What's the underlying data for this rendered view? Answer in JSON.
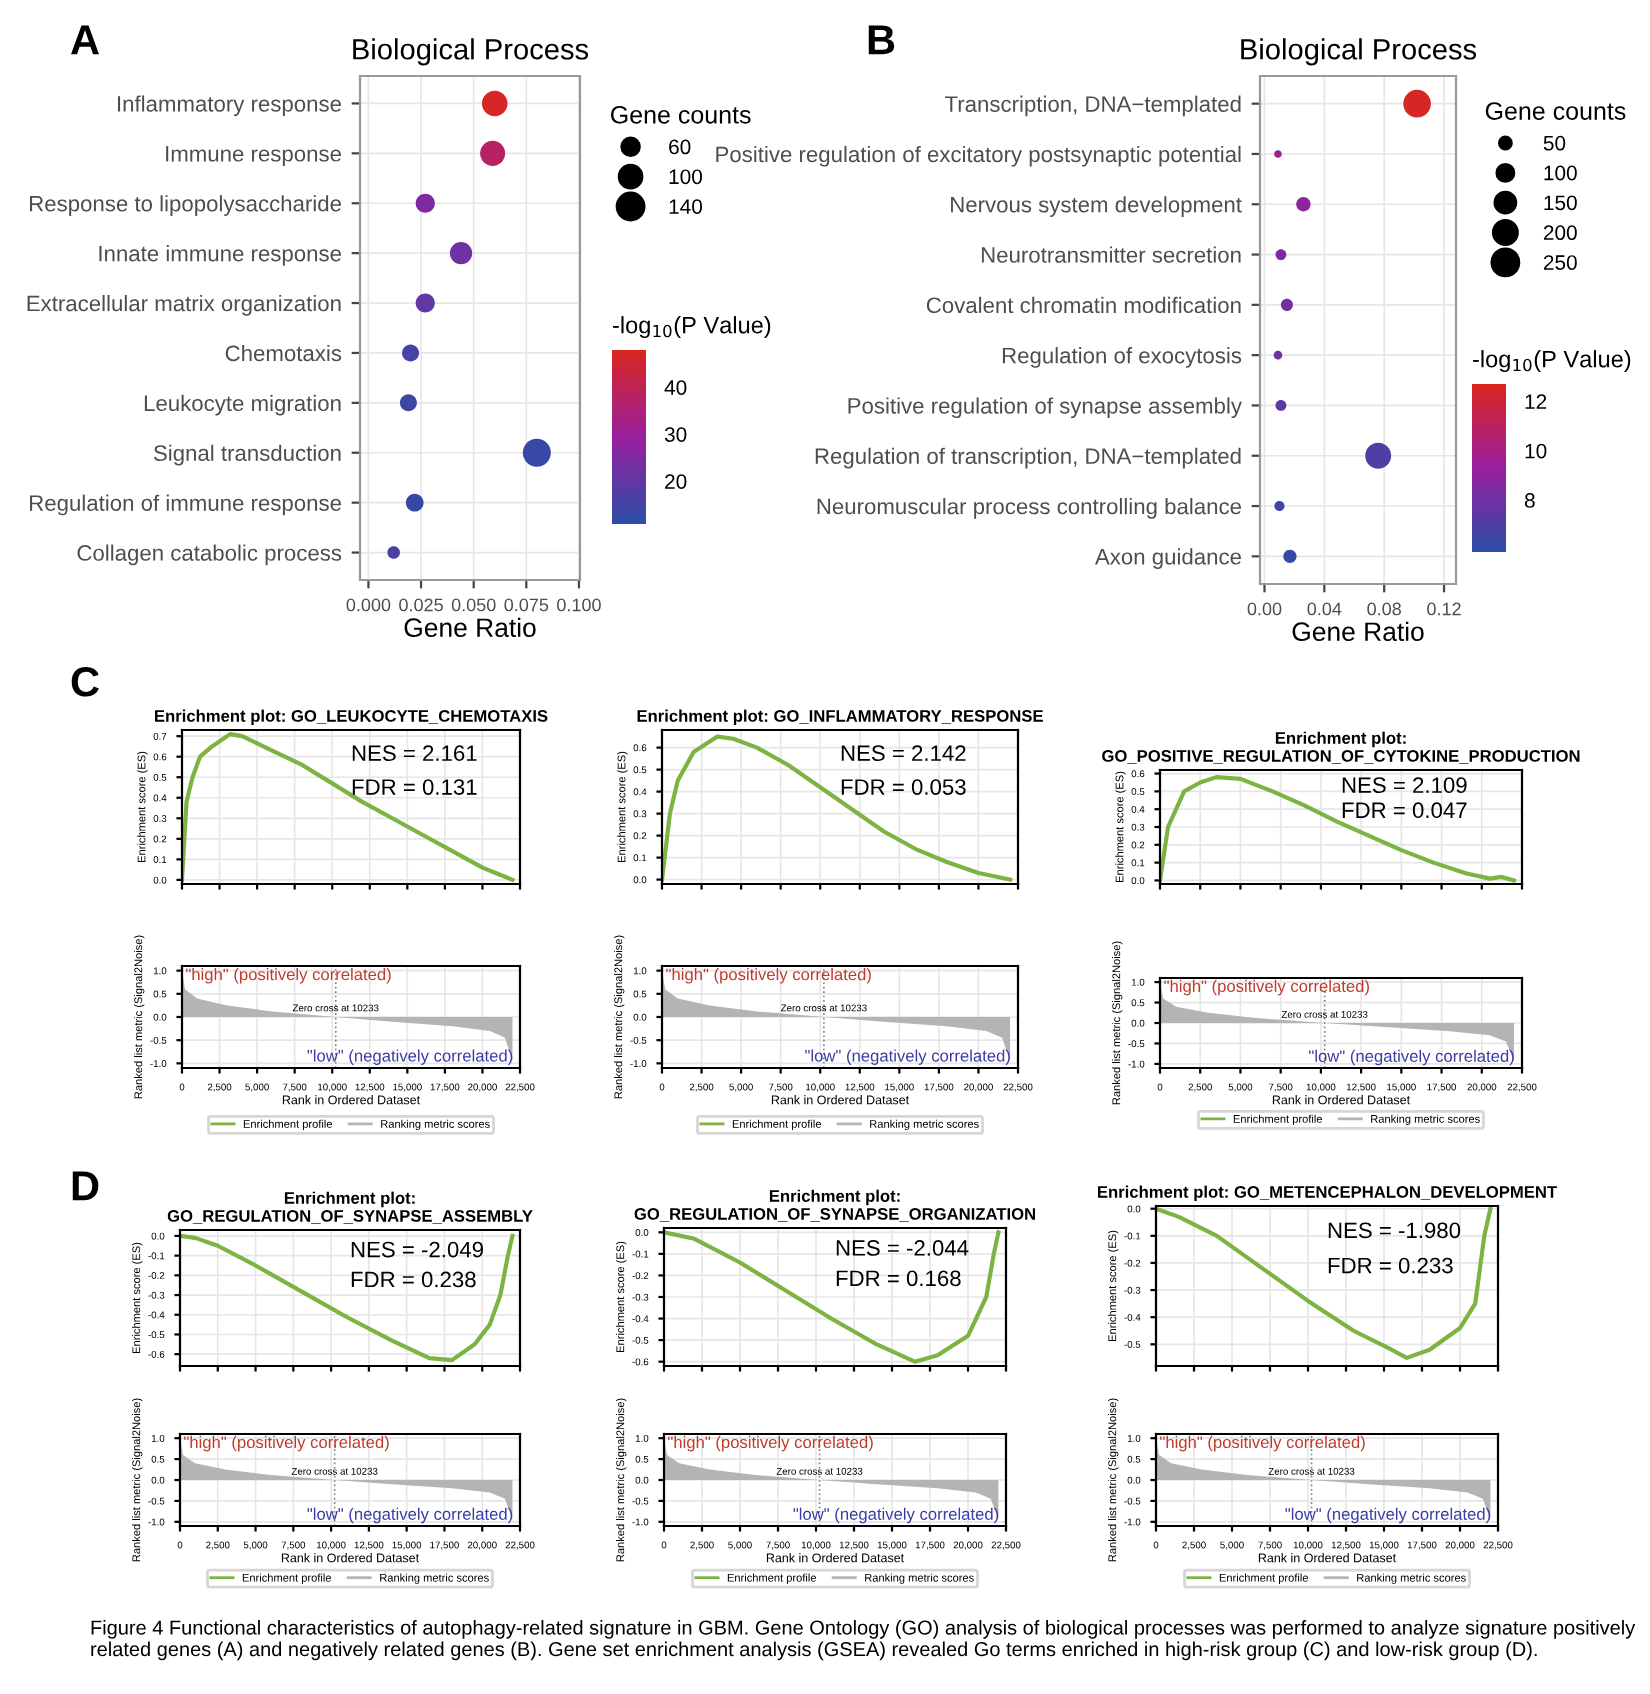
{
  "chart_data": [
    {
      "type": "bubble",
      "orientation": "horizontal",
      "title": "Biological Process",
      "xlabel": "Gene Ratio",
      "legend_title": "Gene counts",
      "clabel": "-log$_{10}$(P Value)",
      "annotations": [
        "A",
        "Figure 4 Functional characteristics of autophagy-related signature in GBM. Gene Ontology (GO) analysis of biological processes was performed to analyze signature positively related genes (A) and negatively related genes (B). Gene set enrichment analysis (GSEA) revealed Go terms enriched in high-risk group (C) and low-risk group (D)."
      ],
      "categories": [
        "Inflammatory response",
        "Immune response",
        "Response to lipopolysaccharide",
        "Innate immune response",
        "Extracellular matrix organization",
        "Chemotaxis",
        "Leukocyte migration",
        "Signal transduction",
        "Regulation of immune response",
        "Collagen catabolic process"
      ],
      "values": [
        0.06,
        0.059,
        0.027,
        0.044,
        0.027,
        0.02,
        0.019,
        0.08,
        0.022,
        0.012
      ],
      "sizes": [
        125,
        120,
        70,
        95,
        70,
        55,
        55,
        150,
        60,
        30
      ],
      "size_legend": [
        60,
        100,
        140
      ],
      "cvalues": [
        47,
        38,
        25,
        22,
        20,
        15,
        14,
        13,
        13,
        16
      ],
      "clim": [
        10.9,
        47.9
      ],
      "cticks": [
        20,
        30,
        40
      ],
      "xlim": [
        -0.004,
        0.1005
      ],
      "xticks": [
        {
          "value": 0,
          "label": "0.000"
        },
        0.025,
        {
          "value": 0.05,
          "label": "0.050"
        },
        0.075,
        {
          "value": 0.1,
          "label": "0.100"
        }
      ],
      "grid": true,
      "marker": "circle"
    },
    {
      "type": "bubble",
      "orientation": "horizontal",
      "title": "Biological Process",
      "xlabel": "Gene Ratio",
      "legend_title": "Gene counts",
      "clabel": "-log$_{10}$(P Value)",
      "annotations": [
        "B"
      ],
      "categories": [
        "Transcription, DNA−templated",
        "Positive regulation of excitatory postsynaptic potential",
        "Nervous system development",
        "Neurotransmitter secretion",
        "Covalent chromatin modification",
        "Regulation of exocytosis",
        "Positive regulation of synapse assembly",
        "Regulation of transcription, DNA−templated",
        "Neuromuscular process controlling balance",
        "Axon guidance"
      ],
      "values": [
        0.102,
        0.009,
        0.026,
        0.011,
        0.015,
        0.009,
        0.011,
        0.076,
        0.01,
        0.017
      ],
      "sizes": [
        260,
        20,
        70,
        40,
        50,
        25,
        40,
        230,
        35,
        60
      ],
      "size_legend": [
        50,
        100,
        150,
        200,
        250
      ],
      "cvalues": [
        12.5,
        9.5,
        9,
        8.5,
        8,
        8,
        7.5,
        7,
        6.5,
        6.2
      ],
      "clim": [
        5.9,
        12.7
      ],
      "cticks": [
        8,
        10,
        12
      ],
      "xlim": [
        -0.003,
        0.128
      ],
      "xticks": [
        {
          "value": 0,
          "label": "0.00"
        },
        0.04,
        0.08,
        0.12
      ],
      "grid": true,
      "marker": "circle"
    },
    {
      "type": "line",
      "title": "Enrichment plot: GO_LEUKOCYTE_CHEMOTAXIS",
      "ylabel": "Enrichment score (ES)",
      "annotations": [
        "NES = 2.161",
        "FDR = 0.131",
        "C"
      ],
      "series": [
        {
          "name": "Enrichment profile",
          "color": "#7cb342",
          "x": [
            0,
            300,
            700,
            1200,
            2000,
            3200,
            4000,
            6000,
            8000,
            10000,
            12000,
            14000,
            16000,
            18000,
            20000,
            21000,
            22000
          ],
          "values": [
            0,
            0.38,
            0.5,
            0.6,
            0.65,
            0.71,
            0.7,
            0.63,
            0.56,
            0.47,
            0.38,
            0.3,
            0.22,
            0.14,
            0.06,
            0.03,
            0
          ]
        }
      ],
      "xlim": [
        0,
        22500
      ],
      "ylim": [
        -0.02,
        0.73
      ],
      "yticks": [
        {
          "value": 0,
          "label": "0.0"
        },
        0.1,
        0.2,
        0.3,
        0.4,
        0.5,
        0.6,
        0.7
      ],
      "xticks": [
        0,
        2500,
        5000,
        7500,
        10000,
        12500,
        15000,
        17500,
        20000,
        22500
      ],
      "tick_labels": "y",
      "grid": true
    },
    {
      "type": "area",
      "ylabel": "Ranked list metric (Signal2Noise)",
      "xlabel": "Rank in Ordered Dataset",
      "annotations": [
        "\"high\" (positively correlated)",
        "\"low\" (negatively correlated)"
      ],
      "series": [
        {
          "name": "Ranking metric scores",
          "color": "#b4b4b4",
          "x": [
            0,
            200,
            1000,
            3000,
            6000,
            10233,
            14000,
            18000,
            20500,
            21500,
            22000
          ],
          "values": [
            1.0,
            0.6,
            0.4,
            0.25,
            0.12,
            0,
            -0.1,
            -0.2,
            -0.3,
            -0.45,
            -0.95
          ]
        }
      ],
      "ref_lines": [
        {
          "axis": "x",
          "value": 10233,
          "label": "Zero cross at 10233",
          "line_style": "dotted",
          "color": "#808080"
        }
      ],
      "xlim": [
        0,
        22500
      ],
      "ylim": [
        -1.1,
        1.1
      ],
      "yticks": [
        {
          "value": -1,
          "label": "-1.0"
        },
        {
          "value": -0.5,
          "label": "-0.5"
        },
        {
          "value": 0,
          "label": "0.0"
        },
        0.5,
        {
          "value": 1,
          "label": "1.0"
        }
      ],
      "xticks": [
        0,
        {
          "value": 2500,
          "label": "2,500"
        },
        {
          "value": 5000,
          "label": "5,000"
        },
        {
          "value": 7500,
          "label": "7,500"
        },
        {
          "value": 10000,
          "label": "10,000"
        },
        {
          "value": 12500,
          "label": "12,500"
        },
        {
          "value": 15000,
          "label": "15,000"
        },
        {
          "value": 17500,
          "label": "17,500"
        },
        {
          "value": 20000,
          "label": "20,000"
        },
        {
          "value": 22500,
          "label": "22,500"
        }
      ],
      "grid": true,
      "legend": "bottom"
    },
    {
      "type": "line",
      "title": "Enrichment plot: GO_INFLAMMATORY_RESPONSE",
      "ylabel": "Enrichment score (ES)",
      "annotations": [
        "NES = 2.142",
        "FDR = 0.053"
      ],
      "series": [
        {
          "name": "Enrichment profile",
          "color": "#7cb342",
          "x": [
            0,
            500,
            1000,
            2000,
            3500,
            4500,
            6000,
            8000,
            10000,
            12000,
            14000,
            16000,
            18000,
            20000,
            22000
          ],
          "values": [
            0,
            0.3,
            0.45,
            0.58,
            0.65,
            0.64,
            0.6,
            0.52,
            0.42,
            0.32,
            0.22,
            0.14,
            0.08,
            0.03,
            0
          ]
        }
      ],
      "xlim": [
        0,
        22500
      ],
      "ylim": [
        -0.02,
        0.68
      ],
      "yticks": [
        {
          "value": 0,
          "label": "0.0"
        },
        0.1,
        0.2,
        0.3,
        0.4,
        0.5,
        0.6
      ],
      "xticks": [
        0,
        2500,
        5000,
        7500,
        10000,
        12500,
        15000,
        17500,
        20000,
        22500
      ],
      "tick_labels": "y",
      "grid": true
    },
    {
      "type": "area",
      "ylabel": "Ranked list metric (Signal2Noise)",
      "xlabel": "Rank in Ordered Dataset",
      "annotations": [
        "\"high\" (positively correlated)",
        "\"low\" (negatively correlated)"
      ],
      "series": [
        {
          "name": "Ranking metric scores",
          "color": "#b4b4b4",
          "x": [
            0,
            200,
            1000,
            3000,
            6000,
            10233,
            14000,
            18000,
            20500,
            21500,
            22000
          ],
          "values": [
            1.0,
            0.6,
            0.4,
            0.25,
            0.12,
            0,
            -0.1,
            -0.2,
            -0.3,
            -0.45,
            -0.95
          ]
        }
      ],
      "ref_lines": [
        {
          "axis": "x",
          "value": 10233,
          "label": "Zero cross at 10233",
          "line_style": "dotted",
          "color": "#808080"
        }
      ],
      "xlim": [
        0,
        22500
      ],
      "ylim": [
        -1.1,
        1.1
      ],
      "yticks": [
        {
          "value": -1,
          "label": "-1.0"
        },
        {
          "value": -0.5,
          "label": "-0.5"
        },
        {
          "value": 0,
          "label": "0.0"
        },
        0.5,
        {
          "value": 1,
          "label": "1.0"
        }
      ],
      "xticks": [
        0,
        {
          "value": 2500,
          "label": "2,500"
        },
        {
          "value": 5000,
          "label": "5,000"
        },
        {
          "value": 7500,
          "label": "7,500"
        },
        {
          "value": 10000,
          "label": "10,000"
        },
        {
          "value": 12500,
          "label": "12,500"
        },
        {
          "value": 15000,
          "label": "15,000"
        },
        {
          "value": 17500,
          "label": "17,500"
        },
        {
          "value": 20000,
          "label": "20,000"
        },
        {
          "value": 22500,
          "label": "22,500"
        }
      ],
      "grid": true,
      "legend": "bottom"
    },
    {
      "type": "line",
      "title": "Enrichment plot:\nGO_POSITIVE_REGULATION_OF_CYTOKINE_PRODUCTION",
      "ylabel": "Enrichment score (ES)",
      "annotations": [
        "NES = 2.109",
        "FDR = 0.047"
      ],
      "series": [
        {
          "name": "Enrichment profile",
          "color": "#7cb342",
          "x": [
            0,
            500,
            1500,
            2500,
            3500,
            5000,
            7000,
            9000,
            11000,
            13000,
            15000,
            17000,
            19000,
            20500,
            21200,
            22000
          ],
          "values": [
            0,
            0.3,
            0.5,
            0.55,
            0.58,
            0.57,
            0.5,
            0.42,
            0.33,
            0.25,
            0.17,
            0.1,
            0.04,
            0.01,
            0.02,
            0
          ]
        }
      ],
      "xlim": [
        0,
        22500
      ],
      "ylim": [
        -0.02,
        0.62
      ],
      "yticks": [
        {
          "value": 0,
          "label": "0.0"
        },
        0.1,
        0.2,
        0.3,
        0.4,
        0.5,
        0.6
      ],
      "xticks": [
        0,
        2500,
        5000,
        7500,
        10000,
        12500,
        15000,
        17500,
        20000,
        22500
      ],
      "tick_labels": "y",
      "grid": true
    },
    {
      "type": "area",
      "ylabel": "Ranked list metric (Signal2Noise)",
      "xlabel": "Rank in Ordered Dataset",
      "annotations": [
        "\"high\" (positively correlated)",
        "\"low\" (negatively correlated)"
      ],
      "series": [
        {
          "name": "Ranking metric scores",
          "color": "#b4b4b4",
          "x": [
            0,
            200,
            1000,
            3000,
            6000,
            10233,
            14000,
            18000,
            20500,
            21500,
            22000
          ],
          "values": [
            1.0,
            0.6,
            0.4,
            0.25,
            0.12,
            0,
            -0.1,
            -0.2,
            -0.3,
            -0.45,
            -0.95
          ]
        }
      ],
      "ref_lines": [
        {
          "axis": "x",
          "value": 10233,
          "label": "Zero cross at 10233",
          "line_style": "dotted",
          "color": "#808080"
        }
      ],
      "xlim": [
        0,
        22500
      ],
      "ylim": [
        -1.1,
        1.1
      ],
      "yticks": [
        {
          "value": -1,
          "label": "-1.0"
        },
        {
          "value": -0.5,
          "label": "-0.5"
        },
        {
          "value": 0,
          "label": "0.0"
        },
        0.5,
        {
          "value": 1,
          "label": "1.0"
        }
      ],
      "xticks": [
        0,
        {
          "value": 2500,
          "label": "2,500"
        },
        {
          "value": 5000,
          "label": "5,000"
        },
        {
          "value": 7500,
          "label": "7,500"
        },
        {
          "value": 10000,
          "label": "10,000"
        },
        {
          "value": 12500,
          "label": "12,500"
        },
        {
          "value": 15000,
          "label": "15,000"
        },
        {
          "value": 17500,
          "label": "17,500"
        },
        {
          "value": 20000,
          "label": "20,000"
        },
        {
          "value": 22500,
          "label": "22,500"
        }
      ],
      "grid": true,
      "legend": "bottom"
    },
    {
      "type": "line",
      "title": "Enrichment plot:\nGO_REGULATION_OF_SYNAPSE_ASSEMBLY",
      "ylabel": "Enrichment score (ES)",
      "annotations": [
        "NES = -2.049",
        "FDR = 0.238",
        "D"
      ],
      "series": [
        {
          "name": "Enrichment profile",
          "color": "#7cb342",
          "x": [
            0,
            1000,
            2500,
            5000,
            8000,
            11000,
            14000,
            16500,
            18000,
            19500,
            20500,
            21200,
            21700,
            22000
          ],
          "values": [
            0,
            -0.01,
            -0.05,
            -0.15,
            -0.28,
            -0.41,
            -0.53,
            -0.62,
            -0.63,
            -0.55,
            -0.45,
            -0.3,
            -0.1,
            0
          ]
        }
      ],
      "xlim": [
        0,
        22500
      ],
      "ylim": [
        -0.66,
        0.03
      ],
      "yticks": [
        {
          "value": -0.6,
          "label": "-0.6"
        },
        {
          "value": -0.5,
          "label": "-0.5"
        },
        {
          "value": -0.4,
          "label": "-0.4"
        },
        {
          "value": -0.3,
          "label": "-0.3"
        },
        {
          "value": -0.2,
          "label": "-0.2"
        },
        {
          "value": -0.1,
          "label": "-0.1"
        },
        {
          "value": 0,
          "label": "0.0"
        }
      ],
      "xticks": [
        0,
        2500,
        5000,
        7500,
        10000,
        12500,
        15000,
        17500,
        20000,
        22500
      ],
      "tick_labels": "y",
      "grid": true
    },
    {
      "type": "area",
      "ylabel": "Ranked list metric (Signal2Noise)",
      "xlabel": "Rank in Ordered Dataset",
      "annotations": [
        "\"high\" (positively correlated)",
        "\"low\" (negatively correlated)"
      ],
      "series": [
        {
          "name": "Ranking metric scores",
          "color": "#b4b4b4",
          "x": [
            0,
            200,
            1000,
            3000,
            6000,
            10233,
            14000,
            18000,
            20500,
            21500,
            22000
          ],
          "values": [
            1.0,
            0.6,
            0.4,
            0.25,
            0.12,
            0,
            -0.1,
            -0.2,
            -0.3,
            -0.45,
            -0.95
          ]
        }
      ],
      "ref_lines": [
        {
          "axis": "x",
          "value": 10233,
          "label": "Zero cross at 10233",
          "line_style": "dotted",
          "color": "#808080"
        }
      ],
      "xlim": [
        0,
        22500
      ],
      "ylim": [
        -1.1,
        1.1
      ],
      "yticks": [
        {
          "value": -1,
          "label": "-1.0"
        },
        {
          "value": -0.5,
          "label": "-0.5"
        },
        {
          "value": 0,
          "label": "0.0"
        },
        0.5,
        {
          "value": 1,
          "label": "1.0"
        }
      ],
      "xticks": [
        0,
        {
          "value": 2500,
          "label": "2,500"
        },
        {
          "value": 5000,
          "label": "5,000"
        },
        {
          "value": 7500,
          "label": "7,500"
        },
        {
          "value": 10000,
          "label": "10,000"
        },
        {
          "value": 12500,
          "label": "12,500"
        },
        {
          "value": 15000,
          "label": "15,000"
        },
        {
          "value": 17500,
          "label": "17,500"
        },
        {
          "value": 20000,
          "label": "20,000"
        },
        {
          "value": 22500,
          "label": "22,500"
        }
      ],
      "grid": true,
      "legend": "bottom"
    },
    {
      "type": "line",
      "title": "Enrichment plot:\nGO_REGULATION_OF_SYNAPSE_ORGANIZATION",
      "ylabel": "Enrichment score (ES)",
      "annotations": [
        "NES = -2.044",
        "FDR = 0.168"
      ],
      "series": [
        {
          "name": "Enrichment profile",
          "color": "#7cb342",
          "x": [
            0,
            2000,
            5000,
            8000,
            11000,
            14000,
            16500,
            18000,
            20000,
            21200,
            21700,
            22000
          ],
          "values": [
            0,
            -0.03,
            -0.14,
            -0.27,
            -0.4,
            -0.52,
            -0.6,
            -0.57,
            -0.48,
            -0.3,
            -0.1,
            0
          ]
        }
      ],
      "xlim": [
        0,
        22500
      ],
      "ylim": [
        -0.62,
        0.02
      ],
      "yticks": [
        {
          "value": -0.6,
          "label": "-0.6"
        },
        {
          "value": -0.5,
          "label": "-0.5"
        },
        {
          "value": -0.4,
          "label": "-0.4"
        },
        {
          "value": -0.3,
          "label": "-0.3"
        },
        {
          "value": -0.2,
          "label": "-0.2"
        },
        {
          "value": -0.1,
          "label": "-0.1"
        },
        {
          "value": 0,
          "label": "0.0"
        }
      ],
      "xticks": [
        0,
        2500,
        5000,
        7500,
        10000,
        12500,
        15000,
        17500,
        20000,
        22500
      ],
      "tick_labels": "y",
      "grid": true
    },
    {
      "type": "area",
      "ylabel": "Ranked list metric (Signal2Noise)",
      "xlabel": "Rank in Ordered Dataset",
      "annotations": [
        "\"high\" (positively correlated)",
        "\"low\" (negatively correlated)"
      ],
      "series": [
        {
          "name": "Ranking metric scores",
          "color": "#b4b4b4",
          "x": [
            0,
            200,
            1000,
            3000,
            6000,
            10233,
            14000,
            18000,
            20500,
            21500,
            22000
          ],
          "values": [
            1.0,
            0.6,
            0.4,
            0.25,
            0.12,
            0,
            -0.1,
            -0.2,
            -0.3,
            -0.45,
            -0.95
          ]
        }
      ],
      "ref_lines": [
        {
          "axis": "x",
          "value": 10233,
          "label": "Zero cross at 10233",
          "line_style": "dotted",
          "color": "#808080"
        }
      ],
      "xlim": [
        0,
        22500
      ],
      "ylim": [
        -1.1,
        1.1
      ],
      "yticks": [
        {
          "value": -1,
          "label": "-1.0"
        },
        {
          "value": -0.5,
          "label": "-0.5"
        },
        {
          "value": 0,
          "label": "0.0"
        },
        0.5,
        {
          "value": 1,
          "label": "1.0"
        }
      ],
      "xticks": [
        0,
        {
          "value": 2500,
          "label": "2,500"
        },
        {
          "value": 5000,
          "label": "5,000"
        },
        {
          "value": 7500,
          "label": "7,500"
        },
        {
          "value": 10000,
          "label": "10,000"
        },
        {
          "value": 12500,
          "label": "12,500"
        },
        {
          "value": 15000,
          "label": "15,000"
        },
        {
          "value": 17500,
          "label": "17,500"
        },
        {
          "value": 20000,
          "label": "20,000"
        },
        {
          "value": 22500,
          "label": "22,500"
        }
      ],
      "grid": true,
      "legend": "bottom"
    },
    {
      "type": "line",
      "title": "Enrichment plot: GO_METENCEPHALON_DEVELOPMENT",
      "ylabel": "Enrichment score (ES)",
      "annotations": [
        "NES = -1.980",
        "FDR = 0.233"
      ],
      "series": [
        {
          "name": "Enrichment profile",
          "color": "#7cb342",
          "x": [
            0,
            1500,
            4000,
            7000,
            10000,
            13000,
            15500,
            16500,
            18000,
            20000,
            21000,
            21600,
            22000
          ],
          "values": [
            0,
            -0.03,
            -0.1,
            -0.22,
            -0.34,
            -0.45,
            -0.52,
            -0.55,
            -0.52,
            -0.44,
            -0.35,
            -0.1,
            0
          ]
        }
      ],
      "xlim": [
        0,
        22500
      ],
      "ylim": [
        -0.58,
        0.01
      ],
      "yticks": [
        {
          "value": -0.5,
          "label": "-0.5"
        },
        {
          "value": -0.4,
          "label": "-0.4"
        },
        {
          "value": -0.3,
          "label": "-0.3"
        },
        {
          "value": -0.2,
          "label": "-0.2"
        },
        {
          "value": -0.1,
          "label": "-0.1"
        },
        {
          "value": 0,
          "label": "0.0"
        }
      ],
      "xticks": [
        0,
        2500,
        5000,
        7500,
        10000,
        12500,
        15000,
        17500,
        20000,
        22500
      ],
      "tick_labels": "y",
      "grid": true
    },
    {
      "type": "area",
      "ylabel": "Ranked list metric (Signal2Noise)",
      "xlabel": "Rank in Ordered Dataset",
      "annotations": [
        "\"high\" (positively correlated)",
        "\"low\" (negatively correlated)"
      ],
      "series": [
        {
          "name": "Ranking metric scores",
          "color": "#b4b4b4",
          "x": [
            0,
            200,
            1000,
            3000,
            6000,
            10233,
            14000,
            18000,
            20500,
            21500,
            22000
          ],
          "values": [
            1.0,
            0.6,
            0.4,
            0.25,
            0.12,
            0,
            -0.1,
            -0.2,
            -0.3,
            -0.45,
            -0.95
          ]
        }
      ],
      "ref_lines": [
        {
          "axis": "x",
          "value": 10233,
          "label": "Zero cross at 10233",
          "line_style": "dotted",
          "color": "#808080"
        }
      ],
      "xlim": [
        0,
        22500
      ],
      "ylim": [
        -1.1,
        1.1
      ],
      "yticks": [
        {
          "value": -1,
          "label": "-1.0"
        },
        {
          "value": -0.5,
          "label": "-0.5"
        },
        {
          "value": 0,
          "label": "0.0"
        },
        0.5,
        {
          "value": 1,
          "label": "1.0"
        }
      ],
      "xticks": [
        0,
        {
          "value": 2500,
          "label": "2,500"
        },
        {
          "value": 5000,
          "label": "5,000"
        },
        {
          "value": 7500,
          "label": "7,500"
        },
        {
          "value": 10000,
          "label": "10,000"
        },
        {
          "value": 12500,
          "label": "12,500"
        },
        {
          "value": 15000,
          "label": "15,000"
        },
        {
          "value": 17500,
          "label": "17,500"
        },
        {
          "value": 20000,
          "label": "20,000"
        },
        {
          "value": 22500,
          "label": "22,500"
        }
      ],
      "grid": true,
      "legend": "bottom"
    }
  ]
}
